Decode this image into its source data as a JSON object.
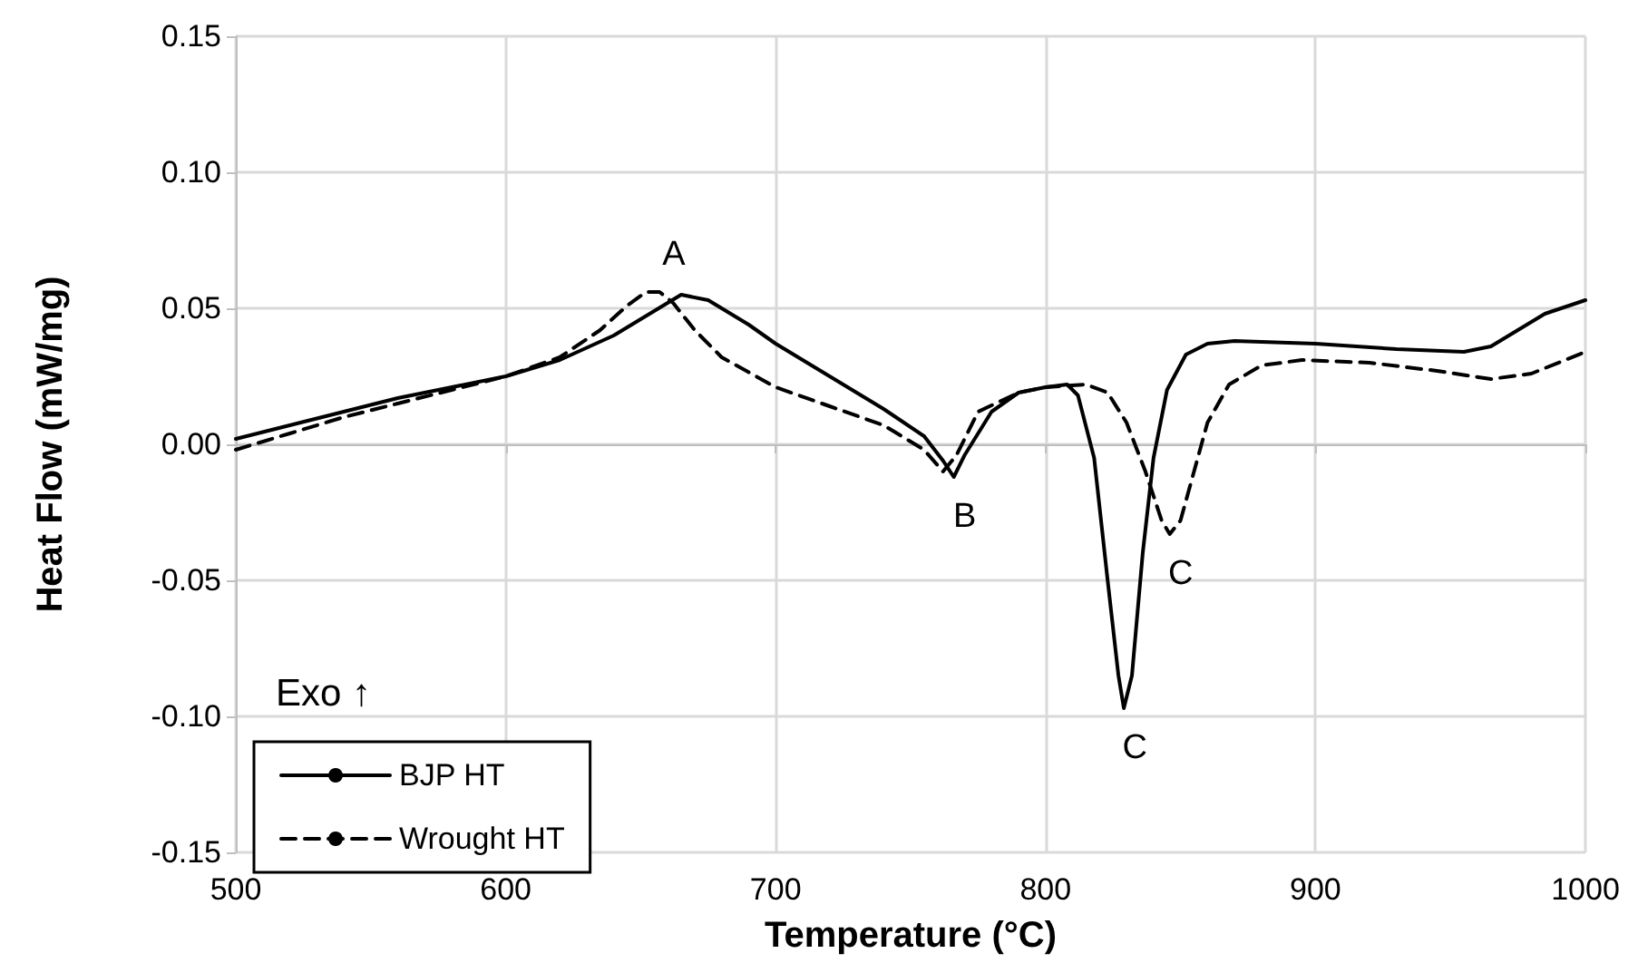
{
  "chart_data": {
    "type": "line",
    "xlabel": "Temperature (°C)",
    "ylabel": "Heat Flow (mW/mg)",
    "xlim": [
      500,
      1000
    ],
    "xticks": [
      500,
      600,
      700,
      800,
      900,
      1000
    ],
    "ylim": [
      -0.15,
      0.15
    ],
    "yticks": [
      {
        "value": -0.15,
        "label": "-0.15"
      },
      {
        "value": -0.1,
        "label": "-0.10"
      },
      {
        "value": -0.05,
        "label": "-0.05"
      },
      {
        "value": 0,
        "label": "0.00"
      },
      {
        "value": 0.05,
        "label": "0.05"
      },
      {
        "value": 0.1,
        "label": "0.10"
      },
      {
        "value": 0.15,
        "label": "0.15"
      }
    ],
    "grid": true,
    "legend": "bottom left",
    "marker": "none",
    "annotations": [
      {
        "text": "A",
        "x": 665,
        "y": 0.055
      },
      {
        "text": "B",
        "x": 766,
        "y": -0.012
      },
      {
        "text": "C",
        "x": 829,
        "y": -0.097
      },
      {
        "text": "C",
        "x": 846,
        "y": -0.033
      },
      "Exo ↑"
    ],
    "series": [
      {
        "name": "BJP HT",
        "color": "#000000",
        "line_style": "solid",
        "x": [
          500,
          520,
          540,
          560,
          580,
          600,
          620,
          640,
          655,
          665,
          675,
          690,
          700,
          720,
          740,
          755,
          762,
          766,
          770,
          780,
          790,
          800,
          808,
          812,
          818,
          823,
          827,
          829,
          832,
          836,
          840,
          845,
          852,
          860,
          870,
          900,
          930,
          955,
          965,
          975,
          985,
          1000
        ],
        "values": [
          0.002,
          0.007,
          0.012,
          0.017,
          0.021,
          0.025,
          0.031,
          0.04,
          0.049,
          0.055,
          0.053,
          0.044,
          0.037,
          0.025,
          0.013,
          0.003,
          -0.006,
          -0.012,
          -0.004,
          0.012,
          0.019,
          0.021,
          0.022,
          0.018,
          -0.005,
          -0.05,
          -0.085,
          -0.097,
          -0.085,
          -0.04,
          -0.005,
          0.02,
          0.033,
          0.037,
          0.038,
          0.037,
          0.035,
          0.034,
          0.036,
          0.042,
          0.048,
          0.053
        ]
      },
      {
        "name": "Wrought HT",
        "color": "#000000",
        "line_style": "dashed",
        "x": [
          500,
          520,
          540,
          560,
          580,
          600,
          620,
          635,
          645,
          652,
          657,
          662,
          670,
          680,
          700,
          720,
          740,
          755,
          762,
          767,
          775,
          790,
          800,
          815,
          823,
          830,
          837,
          843,
          846,
          850,
          855,
          860,
          868,
          880,
          895,
          920,
          945,
          965,
          980,
          1000
        ],
        "values": [
          -0.002,
          0.004,
          0.01,
          0.015,
          0.02,
          0.025,
          0.032,
          0.042,
          0.051,
          0.056,
          0.056,
          0.052,
          0.042,
          0.032,
          0.021,
          0.014,
          0.007,
          -0.002,
          -0.01,
          -0.004,
          0.012,
          0.019,
          0.021,
          0.022,
          0.019,
          0.008,
          -0.01,
          -0.028,
          -0.033,
          -0.028,
          -0.01,
          0.008,
          0.022,
          0.029,
          0.031,
          0.03,
          0.027,
          0.024,
          0.026,
          0.034
        ]
      }
    ]
  }
}
